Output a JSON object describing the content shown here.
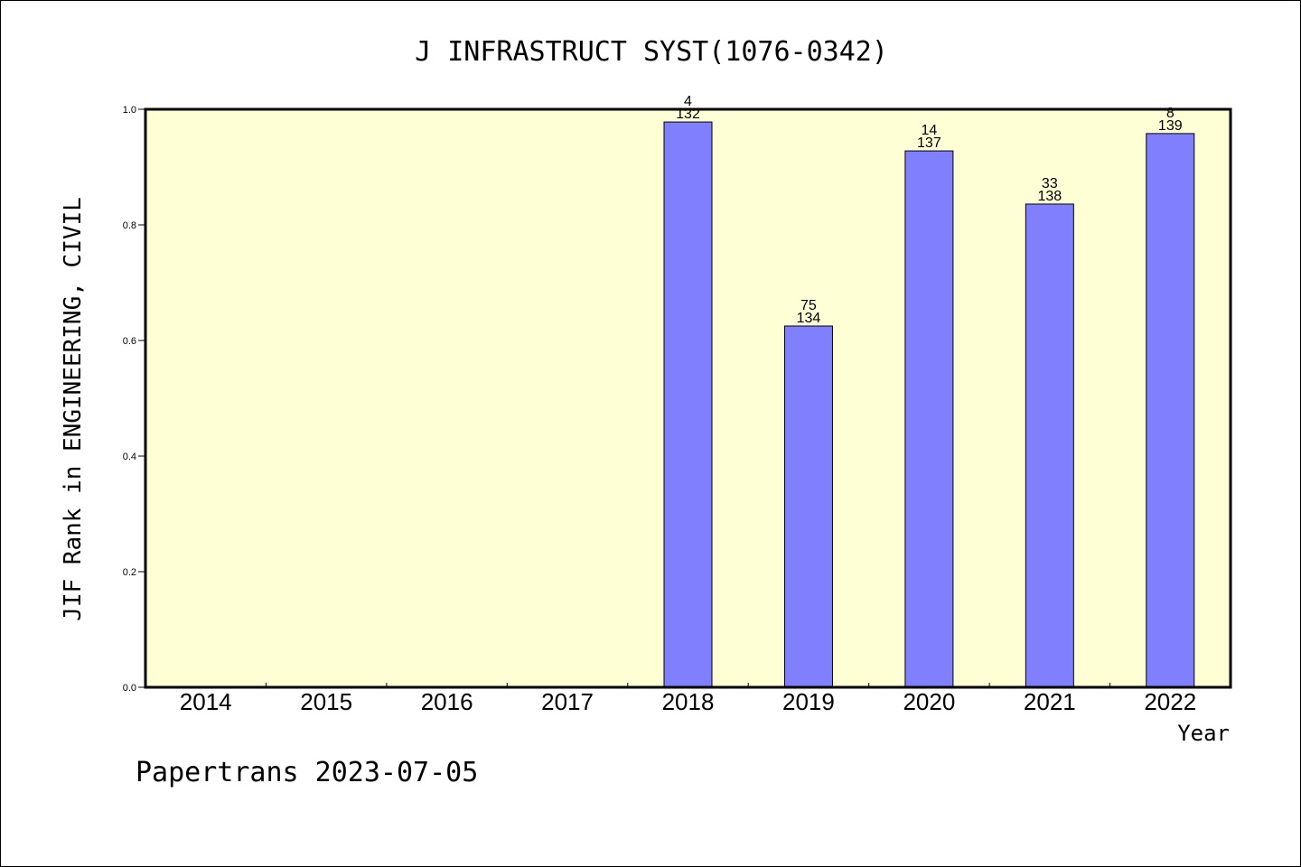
{
  "chart_data": {
    "type": "bar",
    "title": "J INFRASTRUCT SYST(1076-0342)",
    "xlabel": "Year",
    "ylabel": "JIF Rank in ENGINEERING, CIVIL",
    "ylim": [
      0,
      1.0
    ],
    "yticks": [
      "0.0",
      "0.2",
      "0.4",
      "0.6",
      "0.8",
      "1.0"
    ],
    "grid": false,
    "categories": [
      "2014",
      "2015",
      "2016",
      "2017",
      "2018",
      "2019",
      "2020",
      "2021",
      "2022"
    ],
    "values": [
      null,
      null,
      null,
      null,
      0.978,
      0.625,
      0.928,
      0.836,
      0.958
    ],
    "rank_labels": [
      "",
      "",
      "",
      "",
      "4",
      "75",
      "14",
      "33",
      "8"
    ],
    "total_labels": [
      "",
      "",
      "",
      "",
      "132",
      "134",
      "137",
      "138",
      "139"
    ],
    "colors": {
      "plot_background": "#ffffd5",
      "bar_fill": "#8080ff",
      "bar_stroke": "#000000"
    }
  },
  "footer": {
    "text": "Papertrans 2023-07-05"
  }
}
